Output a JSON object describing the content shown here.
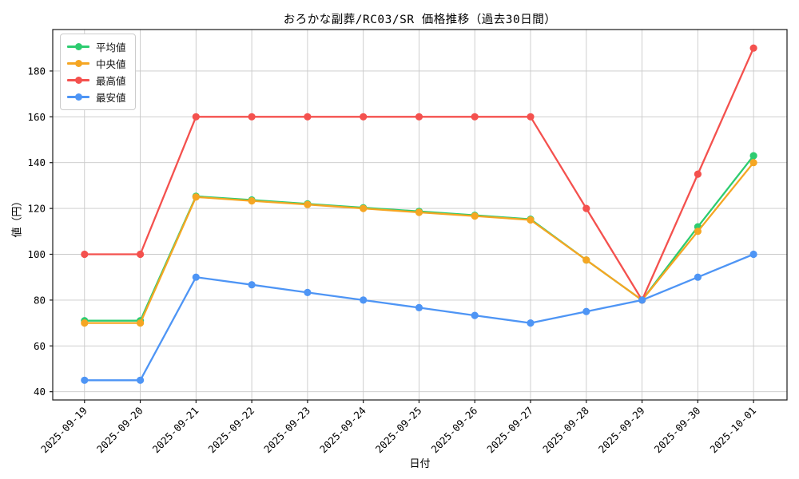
{
  "chart_data": {
    "type": "line",
    "title": "おろかな副葬/RC03/SR 価格推移（過去30日間）",
    "xlabel": "日付",
    "ylabel": "値（円）",
    "grid": true,
    "legend_position": "upper left",
    "x": [
      "2025-09-19",
      "2025-09-20",
      "2025-09-21",
      "2025-09-22",
      "2025-09-23",
      "2025-09-24",
      "2025-09-25",
      "2025-09-26",
      "2025-09-27",
      "2025-09-28",
      "2025-09-29",
      "2025-09-30",
      "2025-10-01"
    ],
    "yticks": [
      40,
      60,
      80,
      100,
      120,
      140,
      160,
      180
    ],
    "ylim": [
      36.4,
      198.1
    ],
    "series": [
      {
        "name": "平均値",
        "color": "#2dcc70",
        "values": [
          71,
          71,
          125.3,
          123.7,
          122,
          120.3,
          118.7,
          117,
          115.3,
          97.5,
          80,
          112,
          143
        ]
      },
      {
        "name": "中央値",
        "color": "#f5a623",
        "values": [
          70,
          70,
          125,
          123.3,
          121.7,
          120,
          118.3,
          116.7,
          115,
          97.5,
          80,
          110,
          140
        ]
      },
      {
        "name": "最高値",
        "color": "#f4514e",
        "values": [
          100,
          100,
          160,
          160,
          160,
          160,
          160,
          160,
          160,
          120,
          80,
          135,
          190
        ]
      },
      {
        "name": "最安値",
        "color": "#4e95f5",
        "values": [
          45,
          45,
          90,
          86.7,
          83.3,
          80,
          76.7,
          73.3,
          70,
          75,
          80,
          90,
          100
        ]
      }
    ],
    "colors": {
      "grid": "#c9c9c9",
      "frame": "#1a1a1a",
      "text": "#000000",
      "background": "#ffffff"
    }
  }
}
